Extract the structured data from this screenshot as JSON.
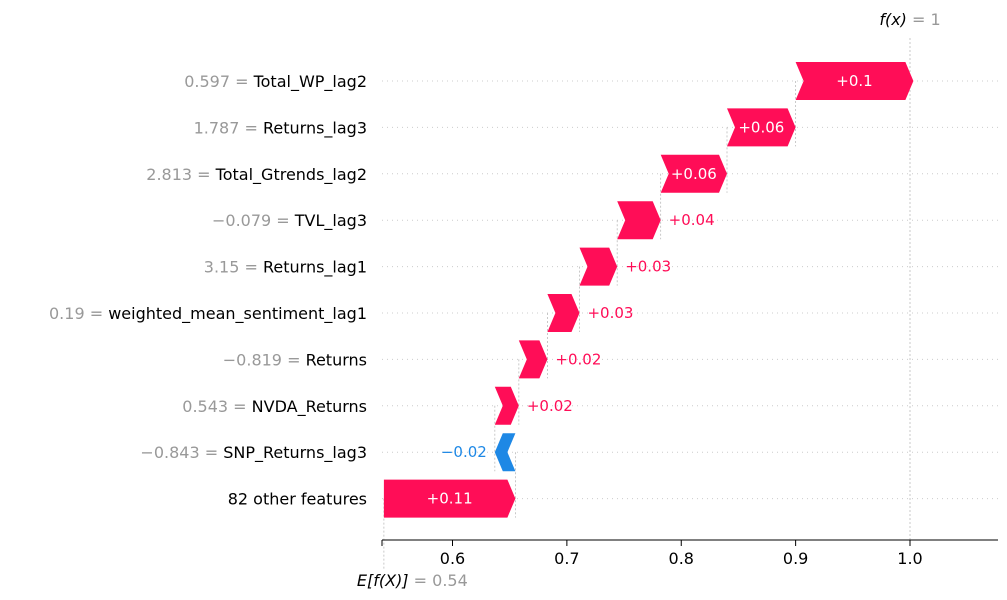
{
  "chart_data": {
    "type": "waterfall",
    "title": "",
    "xlabel": "",
    "ylabel": "",
    "base_value": 0.54,
    "base_label": "E[f(X)]",
    "base_value_text": "= 0.54",
    "output_value": 1,
    "output_label": "f(x)",
    "output_value_text": "= 1",
    "xlim": [
      0.54,
      1.08
    ],
    "x_ticks": [
      0.6,
      0.7,
      0.8,
      0.9,
      1.0
    ],
    "x_tick_labels": [
      "0.6",
      "0.7",
      "0.8",
      "0.9",
      "1.0"
    ],
    "features": [
      {
        "value": "0.597",
        "name": "Total_WP_lag2",
        "shap": 0.103,
        "label": "+0.1"
      },
      {
        "value": "1.787",
        "name": "Returns_lag3",
        "shap": 0.06,
        "label": "+0.06"
      },
      {
        "value": "2.813",
        "name": "Total_Gtrends_lag2",
        "shap": 0.058,
        "label": "+0.06"
      },
      {
        "value": "−0.079",
        "name": "TVL_lag3",
        "shap": 0.038,
        "label": "+0.04"
      },
      {
        "value": "3.15",
        "name": "Returns_lag1",
        "shap": 0.033,
        "label": "+0.03"
      },
      {
        "value": "0.19",
        "name": "weighted_mean_sentiment_lag1",
        "shap": 0.028,
        "label": "+0.03"
      },
      {
        "value": "−0.819",
        "name": "Returns",
        "shap": 0.025,
        "label": "+0.02"
      },
      {
        "value": "0.543",
        "name": "NVDA_Returns",
        "shap": 0.021,
        "label": "+0.02"
      },
      {
        "value": "−0.843",
        "name": "SNP_Returns_lag3",
        "shap": -0.018,
        "label": "−0.02"
      },
      {
        "value": "",
        "name": "82 other features",
        "shap": 0.115,
        "label": "+0.11"
      }
    ],
    "colors": {
      "positive": "#ff0d57",
      "negative": "#1e88e5",
      "feature_value": "#999999",
      "label_dark": "#000000"
    },
    "grid": false
  }
}
